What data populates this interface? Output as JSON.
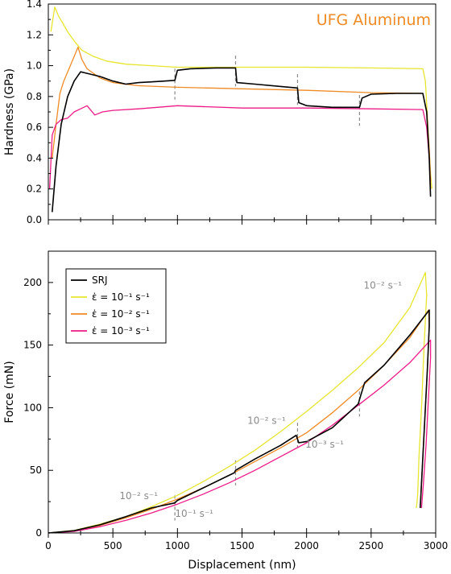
{
  "chart_data": [
    {
      "type": "line",
      "title": "UFG Aluminum",
      "xlabel": "",
      "ylabel": "Hardness (GPa)",
      "xlim": [
        0,
        3000
      ],
      "ylim": [
        0,
        1.4
      ],
      "yticks": [
        "0.0",
        "0.2",
        "0.4",
        "0.6",
        "0.8",
        "1.0",
        "1.2",
        "1.4"
      ],
      "grid": false,
      "jump_markers_x": [
        980,
        1450,
        1930,
        2410
      ],
      "series": [
        {
          "key": "strain-rate-1e-1",
          "color": "#e6e62e",
          "points": [
            [
              20,
              1.22
            ],
            [
              50,
              1.38
            ],
            [
              80,
              1.32
            ],
            [
              110,
              1.28
            ],
            [
              150,
              1.22
            ],
            [
              200,
              1.16
            ],
            [
              260,
              1.1
            ],
            [
              350,
              1.06
            ],
            [
              450,
              1.03
            ],
            [
              600,
              1.01
            ],
            [
              800,
              1.0
            ],
            [
              1000,
              0.99
            ],
            [
              1500,
              0.99
            ],
            [
              2000,
              0.99
            ],
            [
              2500,
              0.985
            ],
            [
              2900,
              0.98
            ],
            [
              2920,
              0.9
            ],
            [
              2940,
              0.6
            ],
            [
              2960,
              0.3
            ],
            [
              2970,
              0.2
            ]
          ]
        },
        {
          "key": "strain-rate-1e-2",
          "color": "#f08a24",
          "points": [
            [
              30,
              0.4
            ],
            [
              60,
              0.62
            ],
            [
              90,
              0.82
            ],
            [
              120,
              0.9
            ],
            [
              160,
              0.98
            ],
            [
              200,
              1.06
            ],
            [
              230,
              1.12
            ],
            [
              260,
              1.04
            ],
            [
              300,
              0.98
            ],
            [
              400,
              0.92
            ],
            [
              500,
              0.89
            ],
            [
              700,
              0.87
            ],
            [
              1000,
              0.86
            ],
            [
              1500,
              0.85
            ],
            [
              2000,
              0.84
            ],
            [
              2500,
              0.825
            ],
            [
              2900,
              0.82
            ],
            [
              2930,
              0.7
            ],
            [
              2950,
              0.45
            ],
            [
              2960,
              0.25
            ]
          ]
        },
        {
          "key": "strain-rate-1e-3",
          "color": "#ee1a86",
          "points": [
            [
              10,
              0.2
            ],
            [
              30,
              0.55
            ],
            [
              60,
              0.62
            ],
            [
              100,
              0.65
            ],
            [
              150,
              0.66
            ],
            [
              200,
              0.7
            ],
            [
              250,
              0.72
            ],
            [
              300,
              0.74
            ],
            [
              360,
              0.68
            ],
            [
              420,
              0.7
            ],
            [
              500,
              0.71
            ],
            [
              700,
              0.72
            ],
            [
              1000,
              0.74
            ],
            [
              1500,
              0.725
            ],
            [
              2000,
              0.725
            ],
            [
              2500,
              0.72
            ],
            [
              2900,
              0.715
            ],
            [
              2930,
              0.6
            ],
            [
              2950,
              0.4
            ],
            [
              2960,
              0.2
            ]
          ]
        },
        {
          "key": "srj",
          "color": "#000000",
          "points": [
            [
              30,
              0.05
            ],
            [
              60,
              0.35
            ],
            [
              100,
              0.62
            ],
            [
              150,
              0.8
            ],
            [
              200,
              0.9
            ],
            [
              250,
              0.96
            ],
            [
              300,
              0.95
            ],
            [
              400,
              0.93
            ],
            [
              500,
              0.9
            ],
            [
              600,
              0.88
            ],
            [
              700,
              0.89
            ],
            [
              800,
              0.895
            ],
            [
              900,
              0.9
            ],
            [
              980,
              0.905
            ],
            [
              1000,
              0.97
            ],
            [
              1100,
              0.98
            ],
            [
              1300,
              0.985
            ],
            [
              1450,
              0.985
            ],
            [
              1460,
              0.89
            ],
            [
              1600,
              0.88
            ],
            [
              1800,
              0.865
            ],
            [
              1930,
              0.855
            ],
            [
              1940,
              0.76
            ],
            [
              2000,
              0.74
            ],
            [
              2200,
              0.73
            ],
            [
              2410,
              0.73
            ],
            [
              2430,
              0.79
            ],
            [
              2500,
              0.815
            ],
            [
              2700,
              0.82
            ],
            [
              2900,
              0.82
            ],
            [
              2930,
              0.7
            ],
            [
              2950,
              0.4
            ],
            [
              2960,
              0.15
            ]
          ]
        }
      ]
    },
    {
      "type": "line",
      "title": "",
      "xlabel": "Displacement (nm)",
      "ylabel": "Force (mN)",
      "xlim": [
        0,
        3000
      ],
      "ylim": [
        0,
        225
      ],
      "xticks": [
        "0",
        "500",
        "1000",
        "1500",
        "2000",
        "2500",
        "3000"
      ],
      "yticks": [
        "0",
        "50",
        "100",
        "150",
        "200"
      ],
      "grid": false,
      "legend_position": "top-left",
      "legend": [
        {
          "key": "srj",
          "label": "SRJ"
        },
        {
          "key": "strain-rate-1e-1",
          "label": "ε̇ = 10⁻¹ s⁻¹"
        },
        {
          "key": "strain-rate-1e-2",
          "label": "ε̇ = 10⁻² s⁻¹"
        },
        {
          "key": "strain-rate-1e-3",
          "label": "ε̇ = 10⁻³ s⁻¹"
        }
      ],
      "annotations": [
        {
          "text": "10⁻² s⁻¹",
          "x": 700,
          "y": 27
        },
        {
          "text": "10⁻¹ s⁻¹",
          "x": 1130,
          "y": 13
        },
        {
          "text": "10⁻² s⁻¹",
          "x": 1690,
          "y": 87
        },
        {
          "text": "10⁻³ s⁻¹",
          "x": 2140,
          "y": 68
        },
        {
          "text": "10⁻² s⁻¹",
          "x": 2590,
          "y": 195
        }
      ],
      "jump_markers_x": [
        980,
        1450,
        1930,
        2410
      ],
      "series": [
        {
          "key": "strain-rate-1e-1",
          "color": "#e6e62e",
          "points": [
            [
              0,
              0
            ],
            [
              200,
              2
            ],
            [
              400,
              7
            ],
            [
              600,
              13
            ],
            [
              800,
              21
            ],
            [
              1000,
              30
            ],
            [
              1200,
              41
            ],
            [
              1400,
              53
            ],
            [
              1600,
              66
            ],
            [
              1800,
              81
            ],
            [
              2000,
              97
            ],
            [
              2200,
              114
            ],
            [
              2400,
              132
            ],
            [
              2600,
              152
            ],
            [
              2800,
              180
            ],
            [
              2920,
              208
            ],
            [
              2930,
              190
            ],
            [
              2910,
              150
            ],
            [
              2890,
              100
            ],
            [
              2870,
              60
            ],
            [
              2860,
              30
            ],
            [
              2850,
              20
            ]
          ]
        },
        {
          "key": "strain-rate-1e-2",
          "color": "#f08a24",
          "points": [
            [
              0,
              0
            ],
            [
              200,
              1.5
            ],
            [
              400,
              6
            ],
            [
              600,
              12
            ],
            [
              800,
              19
            ],
            [
              1000,
              27
            ],
            [
              1200,
              36
            ],
            [
              1400,
              46
            ],
            [
              1600,
              57
            ],
            [
              1800,
              68
            ],
            [
              2000,
              80
            ],
            [
              2200,
              96
            ],
            [
              2400,
              114
            ],
            [
              2600,
              134
            ],
            [
              2800,
              156
            ],
            [
              2945,
              178
            ],
            [
              2950,
              165
            ],
            [
              2935,
              130
            ],
            [
              2915,
              90
            ],
            [
              2895,
              50
            ],
            [
              2880,
              20
            ]
          ]
        },
        {
          "key": "strain-rate-1e-3",
          "color": "#ee1a86",
          "points": [
            [
              0,
              0
            ],
            [
              200,
              1.2
            ],
            [
              400,
              5
            ],
            [
              600,
              10
            ],
            [
              800,
              16
            ],
            [
              1000,
              23
            ],
            [
              1200,
              31
            ],
            [
              1400,
              40
            ],
            [
              1600,
              50
            ],
            [
              1800,
              61
            ],
            [
              2000,
              72
            ],
            [
              2200,
              86
            ],
            [
              2400,
              102
            ],
            [
              2600,
              118
            ],
            [
              2800,
              136
            ],
            [
              2960,
              154
            ],
            [
              2960,
              140
            ],
            [
              2945,
              110
            ],
            [
              2925,
              70
            ],
            [
              2905,
              40
            ],
            [
              2890,
              20
            ]
          ]
        },
        {
          "key": "srj",
          "color": "#000000",
          "points": [
            [
              0,
              0
            ],
            [
              200,
              1.8
            ],
            [
              400,
              6.5
            ],
            [
              600,
              13
            ],
            [
              800,
              20
            ],
            [
              980,
              24
            ],
            [
              1000,
              26
            ],
            [
              1200,
              36
            ],
            [
              1400,
              46
            ],
            [
              1440,
              48
            ],
            [
              1450,
              50
            ],
            [
              1600,
              59
            ],
            [
              1800,
              70
            ],
            [
              1920,
              78
            ],
            [
              1940,
              72
            ],
            [
              2000,
              73
            ],
            [
              2200,
              84
            ],
            [
              2400,
              103
            ],
            [
              2420,
              110
            ],
            [
              2450,
              120
            ],
            [
              2600,
              134
            ],
            [
              2800,
              158
            ],
            [
              2950,
              178
            ],
            [
              2950,
              165
            ],
            [
              2935,
              130
            ],
            [
              2915,
              90
            ],
            [
              2895,
              50
            ],
            [
              2880,
              20
            ]
          ]
        }
      ]
    }
  ]
}
